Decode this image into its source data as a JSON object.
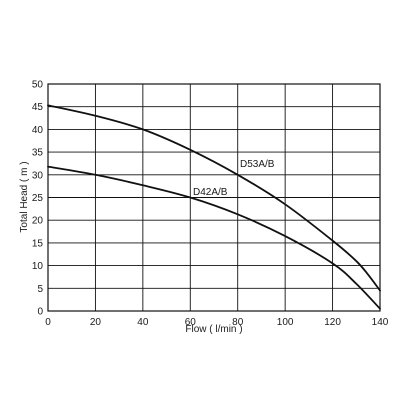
{
  "chart_data": {
    "type": "line",
    "xlabel": "Flow ( l/min )",
    "ylabel": "Total Head ( m )",
    "xlim": [
      0,
      140
    ],
    "ylim": [
      0,
      50
    ],
    "x_ticks": [
      0,
      20,
      40,
      60,
      80,
      100,
      120,
      140
    ],
    "y_ticks": [
      0,
      5,
      10,
      15,
      20,
      25,
      30,
      35,
      40,
      45,
      50
    ],
    "grid": true,
    "legend": "none (series labelled inline next to curves)",
    "series": [
      {
        "name": "D53A/B",
        "color": "#111111",
        "x": [
          0,
          20,
          40,
          60,
          80,
          100,
          120,
          130,
          135,
          140
        ],
        "y": [
          45.3,
          43.0,
          40.0,
          35.5,
          30.0,
          23.5,
          15.5,
          11.0,
          8.0,
          4.5
        ]
      },
      {
        "name": "D42A/B",
        "color": "#111111",
        "x": [
          0,
          20,
          40,
          60,
          80,
          100,
          120,
          130,
          140
        ],
        "y": [
          31.8,
          30.0,
          27.7,
          25.0,
          21.3,
          16.5,
          10.5,
          6.0,
          0.5
        ]
      }
    ]
  }
}
